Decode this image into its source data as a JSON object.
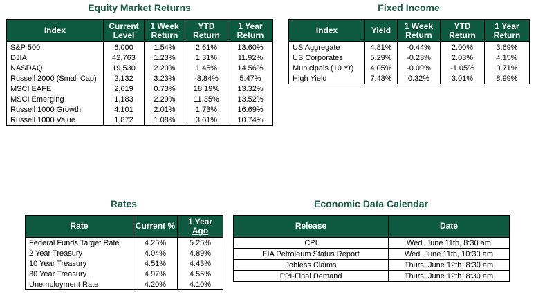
{
  "equity": {
    "title": "Equity Market Returns",
    "headers": [
      "Index",
      "Current Level",
      "1 Week Return",
      "YTD Return",
      "1 Year Return"
    ],
    "rows": [
      [
        "S&P 500",
        "6,000",
        "1.54%",
        "2.61%",
        "13.60%"
      ],
      [
        "DJIA",
        "42,763",
        "1.23%",
        "1.31%",
        "11.92%"
      ],
      [
        "NASDAQ",
        "19,530",
        "2.20%",
        "1.45%",
        "14.56%"
      ],
      [
        "Russell 2000 (Small Cap)",
        "2,132",
        "3.23%",
        "-3.84%",
        "5.47%"
      ],
      [
        "MSCI EAFE",
        "2,619",
        "0.73%",
        "18.19%",
        "13.32%"
      ],
      [
        "MSCI Emerging",
        "1,183",
        "2.29%",
        "11.35%",
        "13.52%"
      ],
      [
        "Russell 1000 Growth",
        "4,101",
        "2.01%",
        "1.73%",
        "16.69%"
      ],
      [
        "Russell 1000 Value",
        "1,872",
        "1.08%",
        "3.61%",
        "10.74%"
      ]
    ]
  },
  "fixed_income": {
    "title": "Fixed Income",
    "headers": [
      "Index",
      "Yield",
      "1 Week Return",
      "YTD Return",
      "1 Year Return"
    ],
    "rows": [
      [
        "US Aggregate",
        "4.81%",
        "-0.44%",
        "2.00%",
        "3.69%"
      ],
      [
        "US Corporates",
        "5.29%",
        "-0.23%",
        "2.03%",
        "4.15%"
      ],
      [
        "Municipals (10 Yr)",
        "4.05%",
        "-0.09%",
        "-1.05%",
        "0.71%"
      ],
      [
        "High Yield",
        "7.43%",
        "0.32%",
        "3.01%",
        "8.99%"
      ]
    ]
  },
  "rates": {
    "title": "Rates",
    "headers": [
      "Rate",
      "Current %",
      "1 Year Ago"
    ],
    "rows": [
      [
        "Federal Funds Target Rate",
        "4.25%",
        "5.25%"
      ],
      [
        "2 Year Treasury",
        "4.04%",
        "4.89%"
      ],
      [
        "10 Year Treasury",
        "4.51%",
        "4.43%"
      ],
      [
        "30 Year Treasury",
        "4.97%",
        "4.55%"
      ],
      [
        "Unemployment Rate",
        "4.20%",
        "4.10%"
      ]
    ]
  },
  "calendar": {
    "title": "Economic Data Calendar",
    "headers": [
      "Release",
      "Date"
    ],
    "rows": [
      [
        "CPI",
        "Wed. June 11th, 8:30 am"
      ],
      [
        "EIA Petroleum Status Report",
        "Wed. June 11th, 10:30 am"
      ],
      [
        "Jobless Claims",
        "Thurs. June 12th, 8:30 am"
      ],
      [
        "PPI-Final Demand",
        "Thurs. June 12th, 8:30 am"
      ]
    ]
  }
}
